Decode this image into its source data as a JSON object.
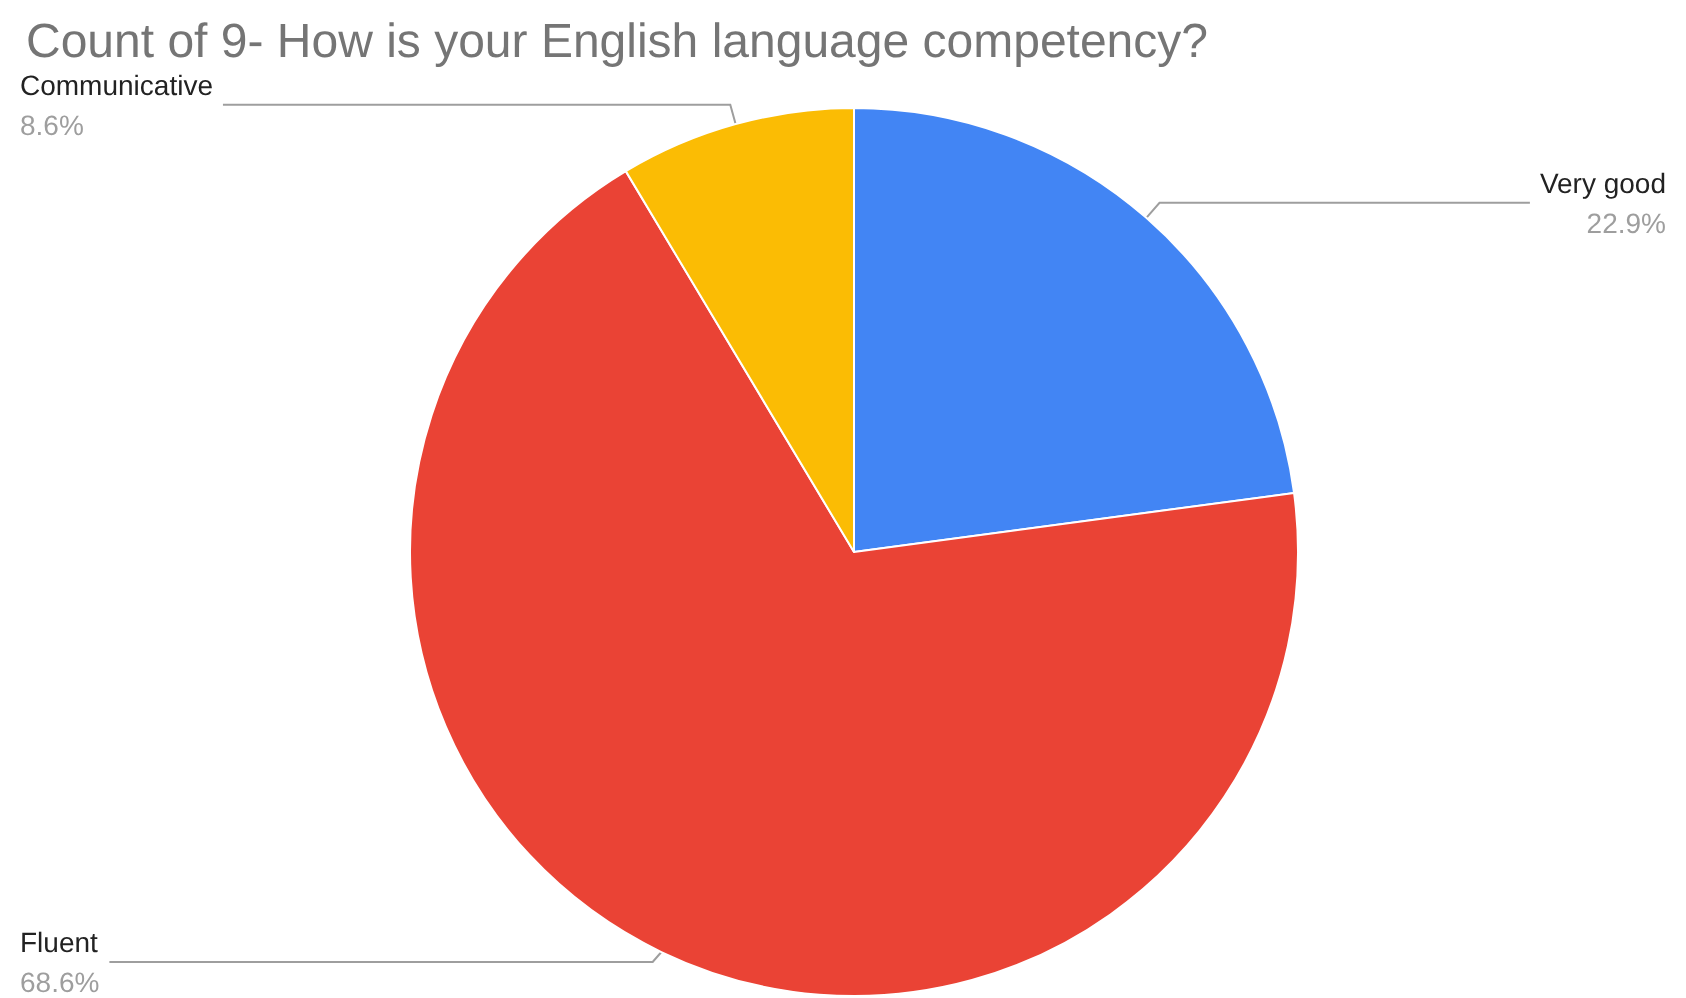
{
  "chart_data": {
    "type": "pie",
    "title": "Count of 9- How is your English language competency?",
    "categories": [
      "Very good",
      "Fluent",
      "Communicative"
    ],
    "values": [
      22.9,
      68.6,
      8.6
    ],
    "value_labels": [
      "22.9%",
      "68.6%",
      "8.6%"
    ],
    "colors": [
      "#4285f4",
      "#ea4335",
      "#fbbc04"
    ],
    "legend": false
  }
}
